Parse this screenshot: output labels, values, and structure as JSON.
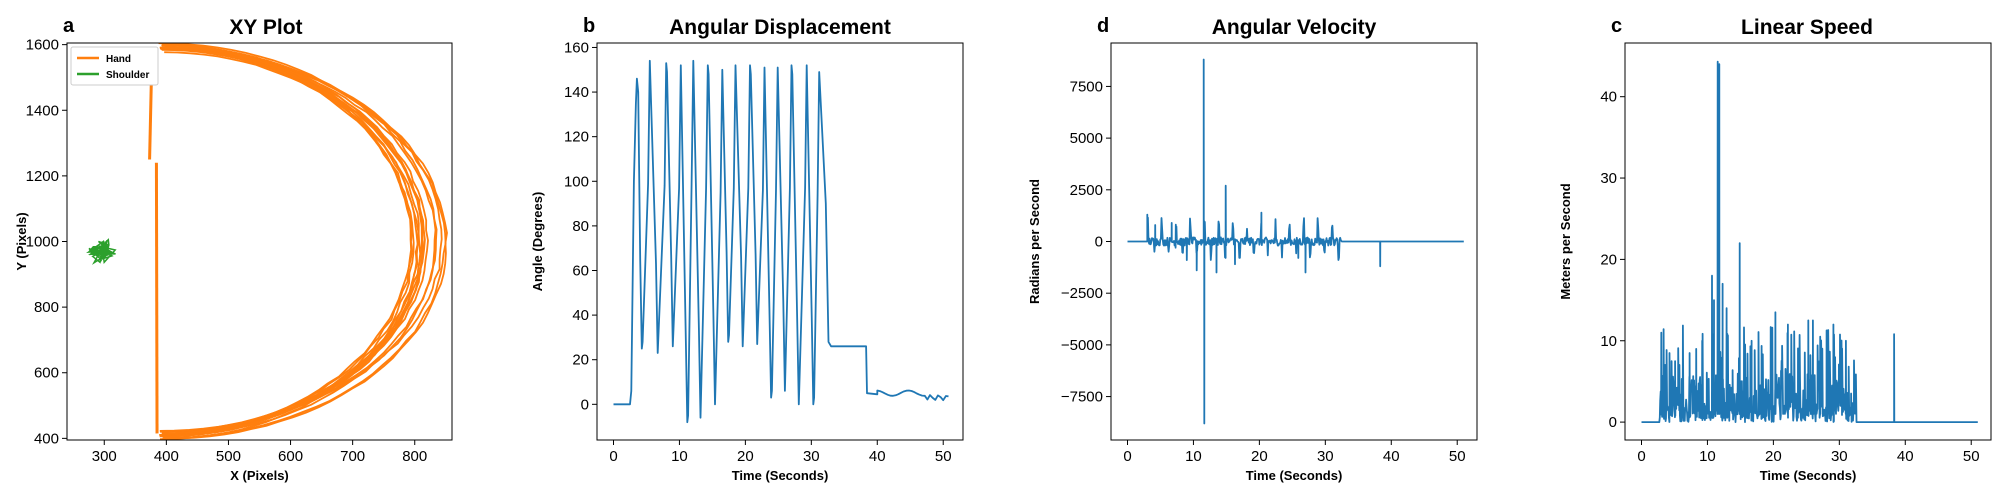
{
  "colors": {
    "orange": "#ff7f0e",
    "green": "#2ca02c",
    "blue": "#1f77b4"
  },
  "chart_data": [
    {
      "letter": "a",
      "title": "XY Plot",
      "type": "line",
      "xlabel": "X (Pixels)",
      "ylabel": "Y (Pixels)",
      "xlim": [
        240,
        860
      ],
      "ylim": [
        395,
        1605
      ],
      "xticks": [
        300,
        400,
        500,
        600,
        700,
        800
      ],
      "yticks": [
        400,
        600,
        800,
        1000,
        1200,
        1400,
        1600
      ],
      "legend": {
        "position": "upper-left",
        "entries": [
          "Hand",
          "Shoulder"
        ]
      },
      "series": [
        {
          "name": "Hand",
          "color": "orange"
        },
        {
          "name": "Shoulder",
          "color": "green"
        }
      ]
    },
    {
      "letter": "b",
      "title": "Angular Displacement",
      "type": "line",
      "xlabel": "Time (Seconds)",
      "ylabel": "Angle (Degrees)",
      "xlim": [
        -2.5,
        53
      ],
      "ylim": [
        -16,
        162
      ],
      "xticks": [
        0,
        10,
        20,
        30,
        40,
        50
      ],
      "yticks": [
        0,
        20,
        40,
        60,
        80,
        100,
        120,
        140,
        160
      ],
      "series": [
        {
          "color": "blue"
        }
      ]
    },
    {
      "letter": "d",
      "title": "Angular Velocity",
      "type": "line",
      "xlabel": "Time (Seconds)",
      "ylabel": "Radians per Second",
      "xlim": [
        -2.5,
        53
      ],
      "ylim": [
        -9600,
        9600
      ],
      "xticks": [
        0,
        10,
        20,
        30,
        40,
        50
      ],
      "yticks": [
        -7500,
        -5000,
        -2500,
        0,
        2500,
        5000,
        7500
      ],
      "series": [
        {
          "color": "blue"
        }
      ]
    },
    {
      "letter": "c",
      "title": "Linear Speed",
      "type": "line",
      "xlabel": "Time (Seconds)",
      "ylabel": "Meters per Second",
      "xlim": [
        -2.5,
        53
      ],
      "ylim": [
        -2.2,
        46.6
      ],
      "xticks": [
        0,
        10,
        20,
        30,
        40,
        50
      ],
      "yticks": [
        0,
        10,
        20,
        30,
        40
      ],
      "series": [
        {
          "color": "blue"
        }
      ]
    }
  ]
}
